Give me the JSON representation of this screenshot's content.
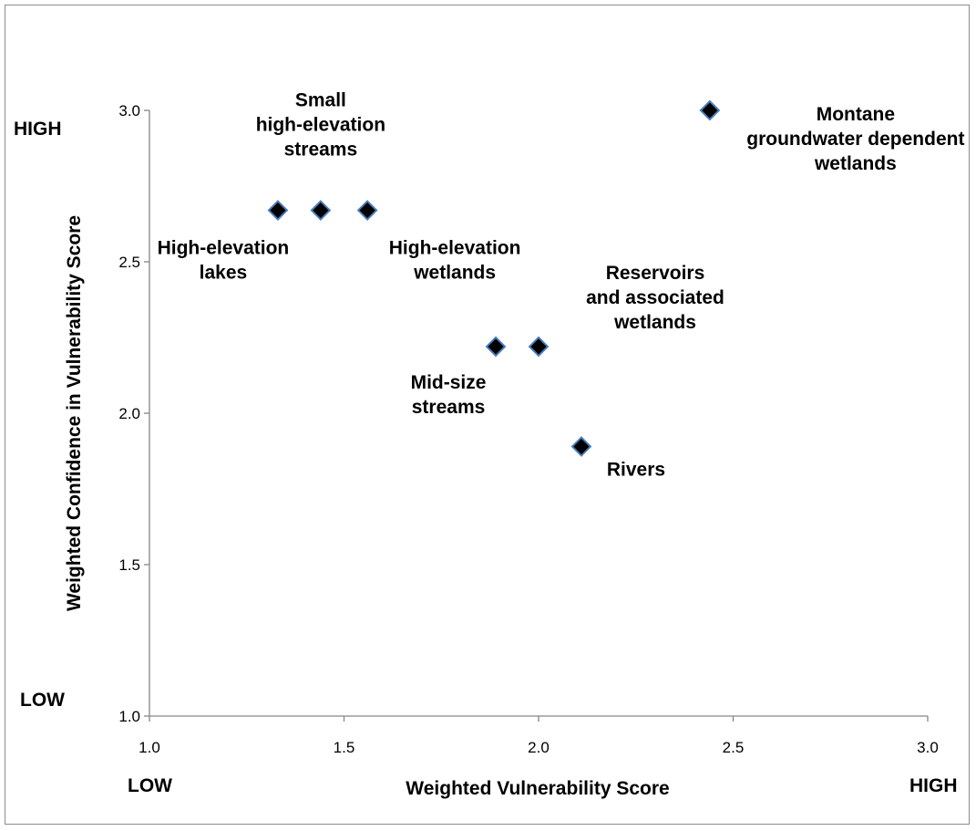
{
  "chart_data": {
    "type": "scatter",
    "title": "",
    "xlabel": "Weighted Vulnerability Score",
    "ylabel": "Weighted Confidence in Vulnerability Score",
    "xlim": [
      1.0,
      3.0
    ],
    "ylim": [
      1.0,
      3.0
    ],
    "x_ticks": [
      "1.0",
      "1.5",
      "2.0",
      "2.5",
      "3.0"
    ],
    "y_ticks": [
      "1.0",
      "1.5",
      "2.0",
      "2.5",
      "3.0"
    ],
    "x_low_label": "LOW",
    "x_high_label": "HIGH",
    "y_low_label": "LOW",
    "y_high_label": "HIGH",
    "grid": false,
    "marker": "diamond",
    "marker_fill": "#000000",
    "marker_edge": "#4a7ebb",
    "points": [
      {
        "x": 1.33,
        "y": 2.67,
        "label": [
          "High-elevation",
          "lakes"
        ]
      },
      {
        "x": 1.44,
        "y": 2.67,
        "label": [
          "Small",
          "high-elevation",
          "streams"
        ]
      },
      {
        "x": 1.56,
        "y": 2.67,
        "label": [
          "High-elevation",
          "wetlands"
        ]
      },
      {
        "x": 1.89,
        "y": 2.22,
        "label": [
          "Mid-size",
          "streams"
        ]
      },
      {
        "x": 2.0,
        "y": 2.22,
        "label": [
          "Reservoirs",
          "and associated",
          "wetlands"
        ]
      },
      {
        "x": 2.11,
        "y": 1.89,
        "label": [
          "Rivers"
        ]
      },
      {
        "x": 2.44,
        "y": 3.0,
        "label": [
          "Montane",
          "groundwater dependent",
          "wetlands"
        ]
      }
    ]
  }
}
